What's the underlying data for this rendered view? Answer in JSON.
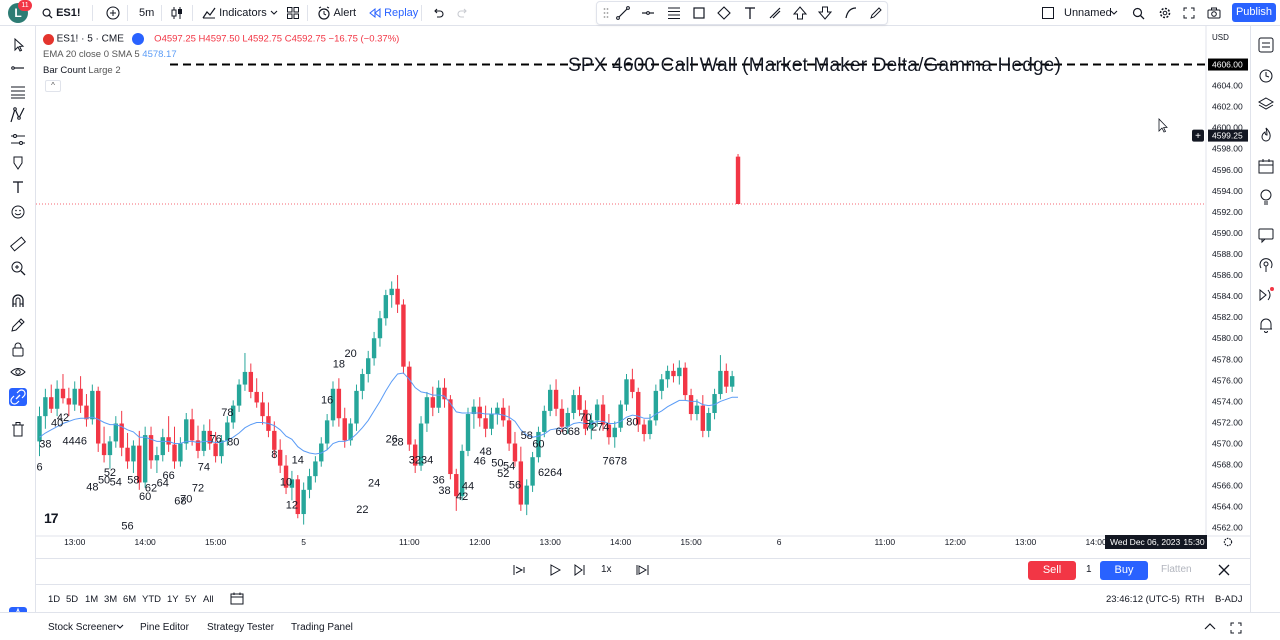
{
  "header": {
    "avatar_letter": "L",
    "avatar_badge": "11",
    "symbol": "ES1!",
    "interval": "5m",
    "indicators_label": "Indicators",
    "alert_label": "Alert",
    "replay_label": "Replay",
    "layout_name": "Unnamed",
    "publish_label": "Publish"
  },
  "legend": {
    "symbol_title": "ES1! · 5 · CME",
    "o_label": "O",
    "o_value": "4597.25",
    "h_label": "H",
    "h_value": "4597.50",
    "l_label": "L",
    "l_value": "4592.75",
    "c_label": "C",
    "c_value": "4592.75",
    "change": "−16.75 (−0.37%)",
    "indicator1": "EMA 20 close 0 SMA 5",
    "indicator1_value": "4578.17",
    "indicator2": "Bar Count",
    "indicator2_args": "Large 2"
  },
  "annotation": "SPX 4600 Call Wall (Market Maker Delta/Gamma Hedge)",
  "currency": "USD",
  "watermark": "17",
  "chart_data": {
    "type": "candlestick",
    "ylim": [
      4561.5,
      4607
    ],
    "y_ticks": [
      4562,
      4564,
      4566,
      4568,
      4570,
      4572,
      4574,
      4576,
      4578,
      4580,
      4582,
      4584,
      4586,
      4588,
      4590,
      4592,
      4594,
      4596,
      4598,
      4600,
      4602,
      4604,
      4606
    ],
    "y_tick_labels": [
      "4562.00",
      "4564.00",
      "4566.00",
      "4568.00",
      "4570.00",
      "4572.00",
      "4574.00",
      "4576.00",
      "4578.00",
      "4580.00",
      "4582.00",
      "4584.00",
      "4586.00",
      "4588.00",
      "4590.00",
      "4592.00",
      "4594.00",
      "4596.00",
      "4598.00",
      "4600.00",
      "4602.00",
      "4604.00",
      "4606.00"
    ],
    "x_tick_labels": [
      "13:00",
      "14:00",
      "15:00",
      "5",
      "11:00",
      "12:00",
      "13:00",
      "14:00",
      "15:00",
      "6",
      "11:00",
      "12:00",
      "13:00",
      "14:00"
    ],
    "x_tick_index": [
      6,
      18,
      30,
      45,
      63,
      75,
      87,
      99,
      111,
      126,
      144,
      156,
      168,
      180
    ],
    "call_wall_level": 4606,
    "current_price": 4592.75,
    "cursor_price": "4599.25",
    "crosshair_date": "Wed Dec 06, 2023",
    "crosshair_time": "15:30",
    "colors": {
      "up": "#26a69a",
      "down": "#f23645",
      "ema": "#5b9cf6",
      "wall": "#000000"
    },
    "candles": [
      [
        4570.2,
        4573.5,
        4568.8,
        4572.6
      ],
      [
        4572.6,
        4575.2,
        4571.4,
        4574.4
      ],
      [
        4574.4,
        4575.6,
        4572.9,
        4573.3
      ],
      [
        4573.3,
        4576.0,
        4572.6,
        4575.2
      ],
      [
        4575.2,
        4576.6,
        4573.8,
        4574.3
      ],
      [
        4574.3,
        4575.3,
        4572.6,
        4573.7
      ],
      [
        4573.7,
        4575.9,
        4573.1,
        4575.2
      ],
      [
        4575.2,
        4576.4,
        4572.9,
        4573.6
      ],
      [
        4573.6,
        4574.7,
        4571.6,
        4572.3
      ],
      [
        4572.3,
        4575.6,
        4571.8,
        4575.0
      ],
      [
        4575.0,
        4575.4,
        4569.2,
        4570.0
      ],
      [
        4570.0,
        4571.6,
        4568.2,
        4568.9
      ],
      [
        4568.9,
        4570.7,
        4567.6,
        4570.2
      ],
      [
        4570.2,
        4572.6,
        4569.6,
        4571.9
      ],
      [
        4571.9,
        4573.1,
        4568.8,
        4569.6
      ],
      [
        4569.6,
        4571.0,
        4567.6,
        4568.3
      ],
      [
        4568.3,
        4570.3,
        4567.2,
        4569.8
      ],
      [
        4569.8,
        4571.2,
        4565.6,
        4566.3
      ],
      [
        4566.3,
        4571.6,
        4565.8,
        4570.8
      ],
      [
        4570.8,
        4571.6,
        4567.6,
        4568.4
      ],
      [
        4568.4,
        4569.7,
        4567.2,
        4568.9
      ],
      [
        4568.9,
        4571.4,
        4568.3,
        4570.6
      ],
      [
        4570.6,
        4572.6,
        4569.2,
        4569.9
      ],
      [
        4569.9,
        4571.6,
        4567.6,
        4568.3
      ],
      [
        4568.3,
        4570.6,
        4567.8,
        4570.0
      ],
      [
        4570.0,
        4572.9,
        4569.4,
        4572.3
      ],
      [
        4572.3,
        4573.3,
        4569.8,
        4570.3
      ],
      [
        4570.3,
        4571.7,
        4568.6,
        4569.3
      ],
      [
        4569.3,
        4571.8,
        4568.8,
        4571.2
      ],
      [
        4571.2,
        4572.3,
        4569.4,
        4570.0
      ],
      [
        4570.0,
        4571.1,
        4568.2,
        4568.8
      ],
      [
        4568.8,
        4570.8,
        4568.1,
        4570.3
      ],
      [
        4570.3,
        4572.6,
        4569.8,
        4572.0
      ],
      [
        4572.0,
        4574.1,
        4571.4,
        4573.6
      ],
      [
        4573.6,
        4576.1,
        4573.0,
        4575.6
      ],
      [
        4575.6,
        4578.6,
        4575.0,
        4576.8
      ],
      [
        4576.8,
        4577.6,
        4574.3,
        4574.9
      ],
      [
        4574.9,
        4576.2,
        4573.4,
        4573.9
      ],
      [
        4573.9,
        4574.9,
        4571.8,
        4572.6
      ],
      [
        4572.6,
        4573.9,
        4570.6,
        4571.2
      ],
      [
        4571.2,
        4572.1,
        4568.6,
        4569.4
      ],
      [
        4569.4,
        4570.4,
        4567.2,
        4567.9
      ],
      [
        4567.9,
        4568.9,
        4565.2,
        4565.8
      ],
      [
        4565.8,
        4567.4,
        4564.6,
        4566.6
      ],
      [
        4566.6,
        4567.0,
        4562.9,
        4563.3
      ],
      [
        4563.3,
        4566.3,
        4562.3,
        4565.6
      ],
      [
        4565.6,
        4567.6,
        4564.8,
        4566.9
      ],
      [
        4566.9,
        4568.8,
        4566.3,
        4568.3
      ],
      [
        4568.3,
        4570.6,
        4567.8,
        4570.0
      ],
      [
        4570.0,
        4572.8,
        4569.4,
        4572.2
      ],
      [
        4572.2,
        4575.9,
        4571.6,
        4575.2
      ],
      [
        4575.2,
        4576.2,
        4571.6,
        4572.4
      ],
      [
        4572.4,
        4573.4,
        4569.6,
        4570.3
      ],
      [
        4570.3,
        4572.4,
        4569.8,
        4571.9
      ],
      [
        4571.9,
        4575.6,
        4571.2,
        4575.0
      ],
      [
        4575.0,
        4577.1,
        4574.2,
        4576.6
      ],
      [
        4576.6,
        4578.8,
        4575.8,
        4578.1
      ],
      [
        4578.1,
        4580.6,
        4577.4,
        4580.0
      ],
      [
        4580.0,
        4582.6,
        4579.2,
        4581.9
      ],
      [
        4581.9,
        4584.6,
        4581.2,
        4584.1
      ],
      [
        4584.1,
        4585.4,
        4582.9,
        4584.7
      ],
      [
        4584.7,
        4586.0,
        4582.4,
        4583.2
      ],
      [
        4583.2,
        4583.7,
        4576.6,
        4577.3
      ],
      [
        4577.3,
        4577.8,
        4569.3,
        4569.9
      ],
      [
        4569.9,
        4570.4,
        4567.2,
        4567.9
      ],
      [
        4567.9,
        4572.6,
        4567.4,
        4571.9
      ],
      [
        4571.9,
        4574.9,
        4571.1,
        4574.4
      ],
      [
        4574.4,
        4575.4,
        4572.6,
        4573.4
      ],
      [
        4573.4,
        4576.0,
        4572.9,
        4575.3
      ],
      [
        4575.3,
        4576.2,
        4573.4,
        4574.2
      ],
      [
        4574.2,
        4574.6,
        4566.6,
        4567.1
      ],
      [
        4567.1,
        4567.6,
        4563.6,
        4565.0
      ],
      [
        4565.0,
        4569.9,
        4564.6,
        4569.3
      ],
      [
        4569.3,
        4573.4,
        4568.8,
        4572.8
      ],
      [
        4572.8,
        4574.2,
        4571.4,
        4573.5
      ],
      [
        4573.5,
        4574.4,
        4571.6,
        4572.4
      ],
      [
        4572.4,
        4573.6,
        4570.6,
        4571.4
      ],
      [
        4571.4,
        4573.4,
        4570.8,
        4572.8
      ],
      [
        4572.8,
        4573.9,
        4571.8,
        4573.4
      ],
      [
        4573.4,
        4574.3,
        4571.6,
        4572.2
      ],
      [
        4572.2,
        4573.6,
        4569.3,
        4570.0
      ],
      [
        4570.0,
        4571.1,
        4567.8,
        4568.3
      ],
      [
        4568.3,
        4569.7,
        4563.6,
        4564.2
      ],
      [
        4564.2,
        4566.6,
        4563.2,
        4566.0
      ],
      [
        4566.0,
        4569.2,
        4565.4,
        4568.7
      ],
      [
        4568.7,
        4571.6,
        4568.2,
        4571.1
      ],
      [
        4571.1,
        4573.6,
        4570.6,
        4573.1
      ],
      [
        4573.1,
        4575.6,
        4572.6,
        4575.1
      ],
      [
        4575.1,
        4576.1,
        4572.6,
        4573.3
      ],
      [
        4573.3,
        4574.2,
        4571.1,
        4571.6
      ],
      [
        4571.6,
        4573.4,
        4570.9,
        4572.9
      ],
      [
        4572.9,
        4575.1,
        4572.3,
        4574.6
      ],
      [
        4574.6,
        4575.4,
        4572.6,
        4573.2
      ],
      [
        4573.2,
        4574.1,
        4570.8,
        4571.4
      ],
      [
        4571.4,
        4572.9,
        4570.4,
        4572.2
      ],
      [
        4572.2,
        4574.2,
        4571.6,
        4573.7
      ],
      [
        4573.7,
        4574.6,
        4571.2,
        4571.8
      ],
      [
        4571.8,
        4572.8,
        4569.9,
        4570.6
      ],
      [
        4570.6,
        4572.1,
        4569.6,
        4571.5
      ],
      [
        4571.5,
        4574.1,
        4571.1,
        4573.7
      ],
      [
        4573.7,
        4576.6,
        4573.1,
        4576.1
      ],
      [
        4576.1,
        4577.1,
        4574.3,
        4574.9
      ],
      [
        4574.9,
        4575.3,
        4571.1,
        4571.8
      ],
      [
        4571.8,
        4572.3,
        4570.2,
        4570.9
      ],
      [
        4570.9,
        4572.8,
        4570.4,
        4572.2
      ],
      [
        4572.2,
        4575.6,
        4571.7,
        4575.0
      ],
      [
        4575.0,
        4576.6,
        4574.2,
        4576.1
      ],
      [
        4576.1,
        4577.4,
        4575.3,
        4576.9
      ],
      [
        4576.9,
        4577.6,
        4575.8,
        4576.4
      ],
      [
        4576.4,
        4577.9,
        4575.6,
        4577.2
      ],
      [
        4577.2,
        4577.7,
        4574.1,
        4574.6
      ],
      [
        4574.6,
        4575.2,
        4572.2,
        4572.8
      ],
      [
        4572.8,
        4574.2,
        4572.2,
        4573.6
      ],
      [
        4573.6,
        4574.6,
        4570.6,
        4571.2
      ],
      [
        4571.2,
        4573.4,
        4570.6,
        4572.9
      ],
      [
        4572.9,
        4575.2,
        4572.3,
        4574.7
      ],
      [
        4574.7,
        4578.4,
        4574.2,
        4576.9
      ],
      [
        4576.9,
        4577.6,
        4574.8,
        4575.4
      ],
      [
        4575.4,
        4576.9,
        4574.9,
        4576.4
      ],
      [
        4597.25,
        4597.5,
        4592.75,
        4592.75
      ]
    ],
    "ema_line": [
      4570.6,
      4571.0,
      4571.3,
      4571.6,
      4571.9,
      4572.1,
      4572.3,
      4572.4,
      4572.4,
      4572.5,
      4572.3,
      4572.0,
      4571.8,
      4571.8,
      4571.6,
      4571.3,
      4571.1,
      4570.6,
      4570.6,
      4570.4,
      4570.2,
      4570.2,
      4570.2,
      4570.0,
      4570.0,
      4570.2,
      4570.2,
      4570.1,
      4570.2,
      4570.2,
      4570.1,
      4570.1,
      4570.3,
      4570.6,
      4571.0,
      4571.5,
      4571.8,
      4572.0,
      4572.0,
      4571.9,
      4571.7,
      4571.3,
      4570.7,
      4570.4,
      4569.7,
      4569.3,
      4569.1,
      4569.0,
      4569.1,
      4569.4,
      4570.0,
      4570.2,
      4570.2,
      4570.4,
      4570.9,
      4571.5,
      4572.2,
      4573.1,
      4574.0,
      4575.0,
      4575.9,
      4576.6,
      4576.7,
      4576.1,
      4575.3,
      4574.9,
      4574.8,
      4574.6,
      4574.6,
      4574.5,
      4573.8,
      4573.0,
      4572.9,
      4572.9,
      4572.9,
      4572.9,
      4572.8,
      4572.8,
      4572.8,
      4572.7,
      4572.5,
      4572.1,
      4571.3,
      4570.8,
      4570.6,
      4570.7,
      4570.9,
      4571.3,
      4571.4,
      4571.4,
      4571.6,
      4571.9,
      4572.0,
      4571.9,
      4571.9,
      4572.1,
      4572.1,
      4571.9,
      4571.9,
      4572.1,
      4572.5,
      4572.7,
      4572.6,
      4572.4,
      4572.4,
      4572.8,
      4573.1,
      4573.5,
      4573.8,
      4574.1,
      4574.1,
      4574.0,
      4574.0,
      4573.7,
      4573.6,
      4573.7,
      4574.0,
      4574.2,
      4574.4,
      4574.4
    ],
    "bar_counts": [
      {
        "i": 0,
        "label": "6",
        "price": 4567.8
      },
      {
        "i": 1,
        "label": "38",
        "price": 4570.0
      },
      {
        "i": 3,
        "label": "40",
        "price": 4572.0
      },
      {
        "i": 4,
        "label": "42",
        "price": 4572.5
      },
      {
        "i": 6,
        "label": "4446",
        "price": 4570.3
      },
      {
        "i": 9,
        "label": "48",
        "price": 4565.9
      },
      {
        "i": 11,
        "label": "50",
        "price": 4566.6
      },
      {
        "i": 12,
        "label": "52",
        "price": 4567.3
      },
      {
        "i": 13,
        "label": "54",
        "price": 4566.4
      },
      {
        "i": 15,
        "label": "56",
        "price": 4562.2
      },
      {
        "i": 16,
        "label": "58",
        "price": 4566.6
      },
      {
        "i": 18,
        "label": "60",
        "price": 4565.0
      },
      {
        "i": 19,
        "label": "62",
        "price": 4565.8
      },
      {
        "i": 21,
        "label": "64",
        "price": 4566.3
      },
      {
        "i": 22,
        "label": "66",
        "price": 4567.0
      },
      {
        "i": 24,
        "label": "68",
        "price": 4564.6
      },
      {
        "i": 25,
        "label": "70",
        "price": 4564.8
      },
      {
        "i": 27,
        "label": "72",
        "price": 4565.8
      },
      {
        "i": 28,
        "label": "74",
        "price": 4567.8
      },
      {
        "i": 30,
        "label": "76",
        "price": 4570.5
      },
      {
        "i": 32,
        "label": "78",
        "price": 4573.0
      },
      {
        "i": 33,
        "label": "80",
        "price": 4570.2
      },
      {
        "i": 40,
        "label": "8",
        "price": 4569.0
      },
      {
        "i": 42,
        "label": "10",
        "price": 4566.4
      },
      {
        "i": 43,
        "label": "12",
        "price": 4564.2
      },
      {
        "i": 44,
        "label": "14",
        "price": 4568.5
      },
      {
        "i": 49,
        "label": "16",
        "price": 4574.2
      },
      {
        "i": 51,
        "label": "18",
        "price": 4577.6
      },
      {
        "i": 53,
        "label": "20",
        "price": 4578.6
      },
      {
        "i": 55,
        "label": "22",
        "price": 4563.8
      },
      {
        "i": 57,
        "label": "24",
        "price": 4566.3
      },
      {
        "i": 60,
        "label": "26",
        "price": 4570.5
      },
      {
        "i": 61,
        "label": "28",
        "price": 4570.2
      },
      {
        "i": 65,
        "label": "3234",
        "price": 4568.5
      },
      {
        "i": 68,
        "label": "36",
        "price": 4566.6
      },
      {
        "i": 69,
        "label": "38",
        "price": 4565.6
      },
      {
        "i": 72,
        "label": "42",
        "price": 4565.0
      },
      {
        "i": 73,
        "label": "44",
        "price": 4566.0
      },
      {
        "i": 75,
        "label": "46",
        "price": 4568.4
      },
      {
        "i": 76,
        "label": "48",
        "price": 4569.3
      },
      {
        "i": 78,
        "label": "50",
        "price": 4568.2
      },
      {
        "i": 79,
        "label": "52",
        "price": 4567.2
      },
      {
        "i": 80,
        "label": "54",
        "price": 4567.9
      },
      {
        "i": 81,
        "label": "56",
        "price": 4566.1
      },
      {
        "i": 83,
        "label": "58",
        "price": 4570.8
      },
      {
        "i": 85,
        "label": "60",
        "price": 4570.0
      },
      {
        "i": 87,
        "label": "6264",
        "price": 4567.3
      },
      {
        "i": 90,
        "label": "6668",
        "price": 4571.2
      },
      {
        "i": 93,
        "label": "70",
        "price": 4572.5
      },
      {
        "i": 95,
        "label": "7274",
        "price": 4571.6
      },
      {
        "i": 98,
        "label": "7678",
        "price": 4568.4
      },
      {
        "i": 101,
        "label": "80",
        "price": 4572.1
      }
    ]
  },
  "playback": {
    "speed": "1x",
    "sell_label": "Sell",
    "qty": "1",
    "buy_label": "Buy",
    "flatten_label": "Flatten"
  },
  "ranges": [
    "1D",
    "5D",
    "1M",
    "3M",
    "6M",
    "YTD",
    "1Y",
    "5Y",
    "All"
  ],
  "status": {
    "clock": "23:46:12 (UTC-5)",
    "session": "RTH",
    "adj": "B-ADJ"
  },
  "bottom_tabs": [
    "Stock Screener",
    "Pine Editor",
    "Strategy Tester",
    "Trading Panel"
  ]
}
